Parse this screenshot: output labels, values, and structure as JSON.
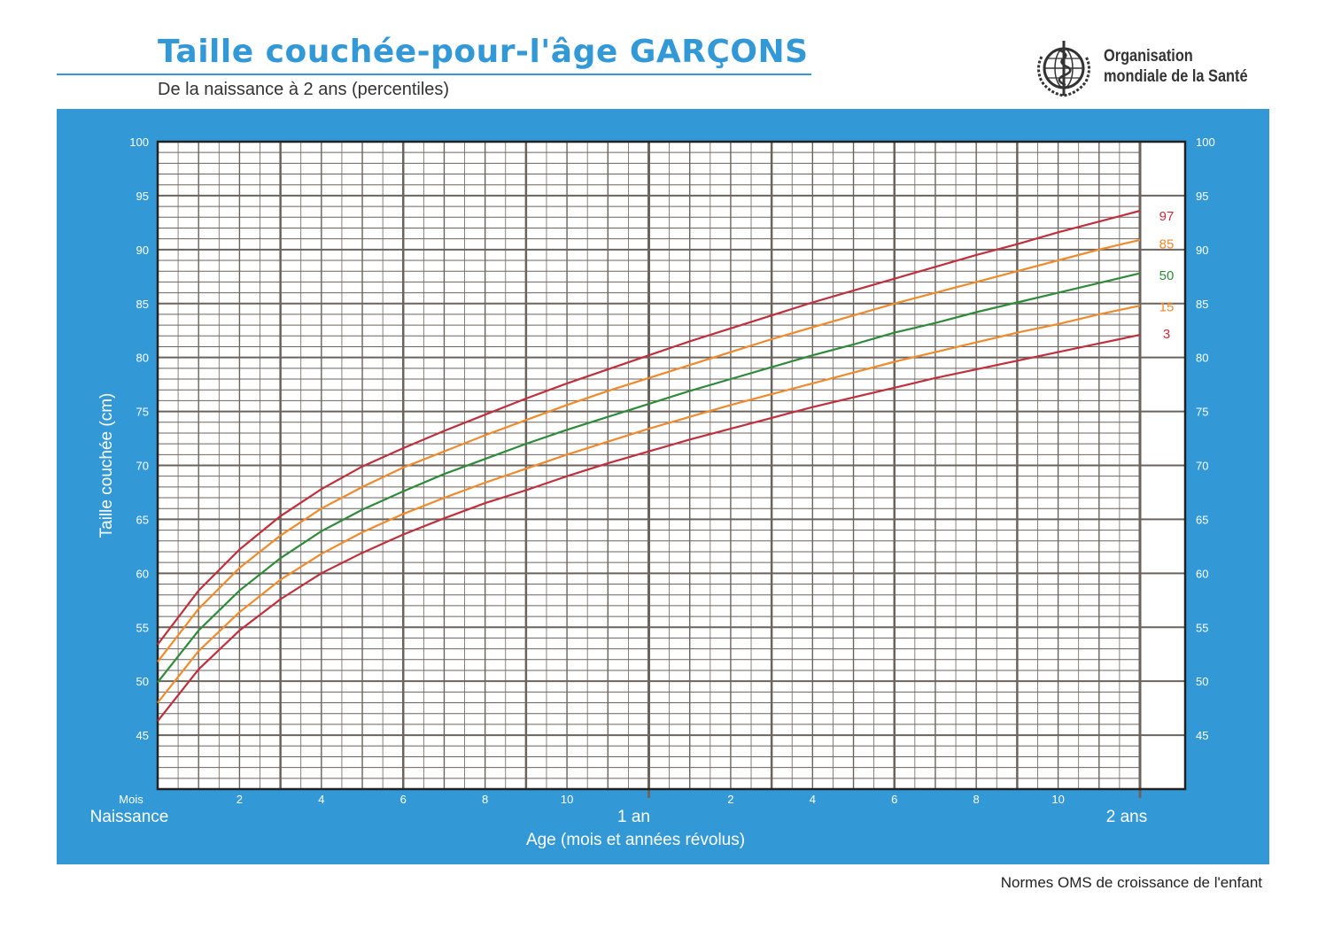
{
  "header": {
    "title": "Taille couchée-pour-l'âge  GARÇONS",
    "subtitle": "De la naissance à 2 ans (percentiles)",
    "org_line1": "Organisation",
    "org_line2": "mondiale de la Santé",
    "logo_icon": "who-emblem-icon"
  },
  "footer": {
    "text": "Normes OMS de croissance de l'enfant"
  },
  "colors": {
    "panel": "#3399d6",
    "grid": "#6b635e",
    "p97": "#c0303c",
    "p85": "#f08a2c",
    "p50": "#2e8b3a",
    "p15": "#f08a2c",
    "p3": "#c0303c"
  },
  "chart_data": {
    "type": "line",
    "ylabel": "Taille couchée (cm)",
    "xlabel": "Age (mois et années révolus)",
    "xlim": [
      0,
      24
    ],
    "ylim": [
      40,
      100
    ],
    "y_ticks": [
      45,
      50,
      55,
      60,
      65,
      70,
      75,
      80,
      85,
      90,
      95,
      100
    ],
    "x_unit_label": "Mois",
    "x_tick_labels": [
      {
        "month": 2,
        "label": "2"
      },
      {
        "month": 4,
        "label": "4"
      },
      {
        "month": 6,
        "label": "6"
      },
      {
        "month": 8,
        "label": "8"
      },
      {
        "month": 10,
        "label": "10"
      },
      {
        "month": 14,
        "label": "2"
      },
      {
        "month": 16,
        "label": "4"
      },
      {
        "month": 18,
        "label": "6"
      },
      {
        "month": 20,
        "label": "8"
      },
      {
        "month": 22,
        "label": "10"
      }
    ],
    "x_milestones": [
      {
        "month": 0,
        "label": "Naissance"
      },
      {
        "month": 12,
        "label": "1 an"
      },
      {
        "month": 24,
        "label": "2 ans"
      }
    ],
    "x": [
      0,
      1,
      2,
      3,
      4,
      5,
      6,
      7,
      8,
      9,
      10,
      11,
      12,
      13,
      14,
      15,
      16,
      17,
      18,
      19,
      20,
      21,
      22,
      23,
      24
    ],
    "series": [
      {
        "name": "97",
        "values": [
          53.4,
          58.4,
          62.2,
          65.3,
          67.8,
          69.9,
          71.6,
          73.2,
          74.7,
          76.2,
          77.6,
          78.9,
          80.2,
          81.5,
          82.7,
          83.9,
          85.1,
          86.2,
          87.3,
          88.4,
          89.5,
          90.5,
          91.6,
          92.6,
          93.6
        ]
      },
      {
        "name": "85",
        "values": [
          51.8,
          56.7,
          60.5,
          63.5,
          66.0,
          68.0,
          69.8,
          71.3,
          72.8,
          74.2,
          75.6,
          76.9,
          78.1,
          79.3,
          80.5,
          81.7,
          82.8,
          83.9,
          85.0,
          86.0,
          87.0,
          88.0,
          89.0,
          90.0,
          90.9
        ]
      },
      {
        "name": "50",
        "values": [
          49.9,
          54.7,
          58.4,
          61.4,
          63.9,
          65.9,
          67.6,
          69.2,
          70.6,
          72.0,
          73.3,
          74.5,
          75.7,
          76.9,
          78.0,
          79.1,
          80.2,
          81.2,
          82.3,
          83.2,
          84.2,
          85.1,
          86.0,
          86.9,
          87.8
        ]
      },
      {
        "name": "15",
        "values": [
          48.0,
          52.8,
          56.4,
          59.4,
          61.8,
          63.8,
          65.5,
          67.0,
          68.4,
          69.7,
          71.0,
          72.2,
          73.4,
          74.5,
          75.6,
          76.6,
          77.6,
          78.6,
          79.6,
          80.5,
          81.4,
          82.3,
          83.1,
          84.0,
          84.8
        ]
      },
      {
        "name": "3",
        "values": [
          46.3,
          51.1,
          54.7,
          57.6,
          60.0,
          61.9,
          63.6,
          65.1,
          66.5,
          67.7,
          69.0,
          70.2,
          71.3,
          72.4,
          73.4,
          74.4,
          75.4,
          76.3,
          77.2,
          78.1,
          78.9,
          79.7,
          80.5,
          81.3,
          82.1
        ]
      }
    ]
  }
}
